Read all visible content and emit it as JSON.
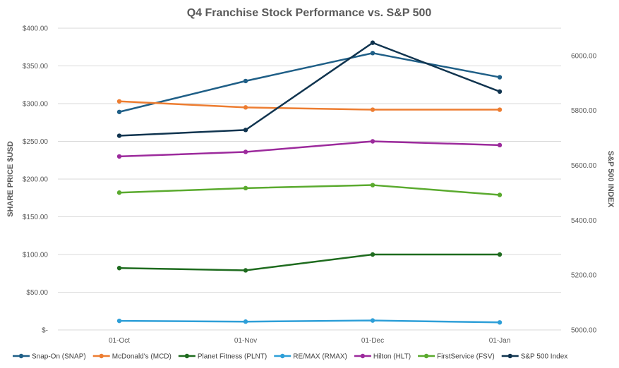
{
  "chart_data": {
    "type": "line",
    "title": "Q4 Franchise Stock Performance vs. S&P 500",
    "categories": [
      "01-Oct",
      "01-Nov",
      "01-Dec",
      "01-Jan"
    ],
    "ylabel": "SHARE PRICE $USD",
    "y2label": "S&P 500 INDEX",
    "ylim": [
      0,
      400
    ],
    "y2lim": [
      5000,
      6100
    ],
    "y_ticks": [
      "$-",
      "$50.00",
      "$100.00",
      "$150.00",
      "$200.00",
      "$250.00",
      "$300.00",
      "$350.00",
      "$400.00"
    ],
    "y2_ticks": [
      "5000.00",
      "5200.00",
      "5400.00",
      "5600.00",
      "5800.00",
      "6000.00"
    ],
    "grid": true,
    "legend_position": "bottom",
    "series": [
      {
        "name": "Snap-On (SNAP)",
        "axis": "left",
        "color": "#1f5f87",
        "values": [
          289,
          330,
          367,
          335
        ]
      },
      {
        "name": "McDonald's (MCD)",
        "axis": "left",
        "color": "#ed7d31",
        "values": [
          303,
          295,
          292,
          292
        ]
      },
      {
        "name": "Planet Fitness (PLNT)",
        "axis": "left",
        "color": "#1e6b1e",
        "values": [
          82,
          79,
          100,
          100
        ]
      },
      {
        "name": "RE/MAX (RMAX)",
        "axis": "left",
        "color": "#2e9fd8",
        "values": [
          12,
          11,
          12.5,
          10
        ]
      },
      {
        "name": "Hilton (HLT)",
        "axis": "left",
        "color": "#9c2a9c",
        "values": [
          230,
          236,
          250,
          245
        ]
      },
      {
        "name": "FirstService (FSV)",
        "axis": "left",
        "color": "#5aaa2e",
        "values": [
          182,
          188,
          192,
          179
        ]
      },
      {
        "name": "S&P 500 Index",
        "axis": "right",
        "color": "#10344f",
        "values": [
          5708,
          5729,
          6047,
          5869
        ]
      }
    ]
  }
}
